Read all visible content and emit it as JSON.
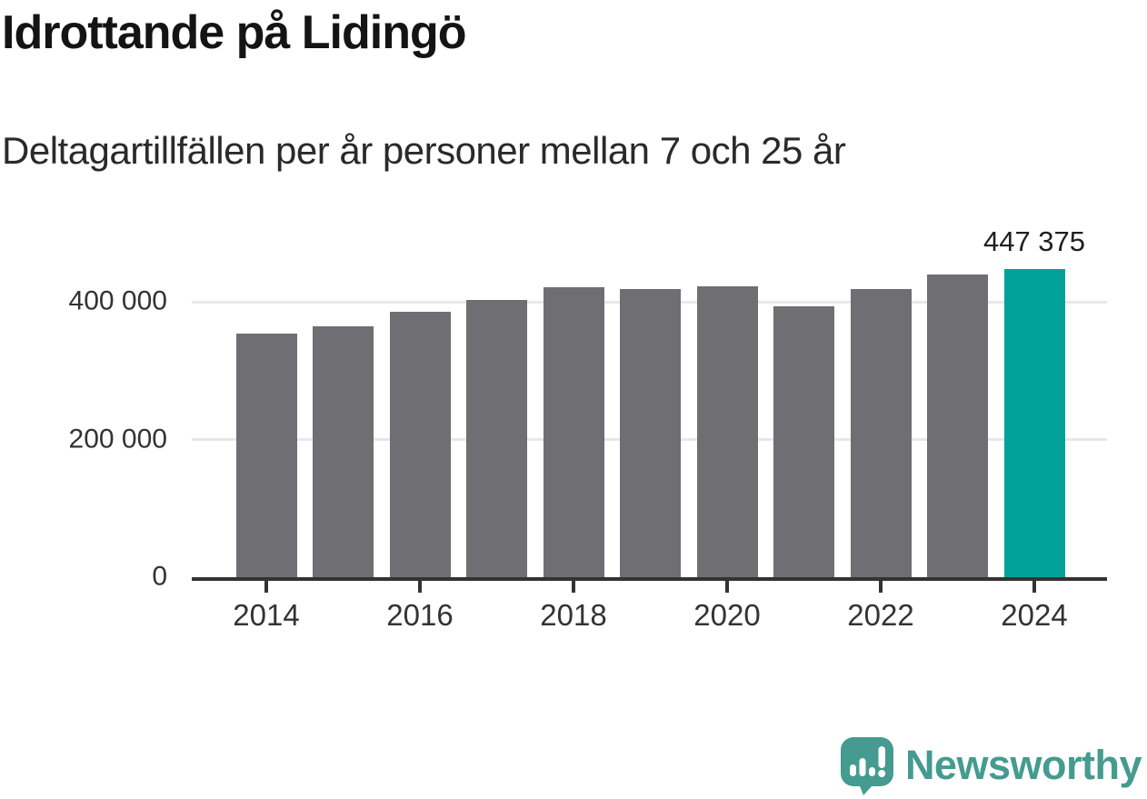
{
  "header": {
    "title": "Idrottande på Lidingö",
    "subtitle": "Deltagartillfällen per år personer mellan 7 och 25 år"
  },
  "chart_data": {
    "type": "bar",
    "title": "Idrottande på Lidingö",
    "subtitle": "Deltagartillfällen per år personer mellan 7 och 25 år",
    "categories": [
      "2014",
      "2015",
      "2016",
      "2017",
      "2018",
      "2019",
      "2020",
      "2021",
      "2022",
      "2023",
      "2024"
    ],
    "values": [
      354000,
      364000,
      386000,
      402000,
      421000,
      418000,
      423000,
      394000,
      419000,
      440000,
      447375
    ],
    "highlight_index": 10,
    "value_label": {
      "index": 10,
      "text": "447 375"
    },
    "yticks": [
      {
        "value": 0,
        "label": "0"
      },
      {
        "value": 200000,
        "label": "200 000"
      },
      {
        "value": 400000,
        "label": "400 000"
      }
    ],
    "xticks": [
      "2014",
      "2016",
      "2018",
      "2020",
      "2022",
      "2024"
    ],
    "ylim": [
      0,
      460000
    ],
    "grid": "horizontal-only",
    "legend": "none",
    "colors": {
      "bar": "#6e6e73",
      "highlight": "#00a29a",
      "gridline": "#e8e8e8",
      "axis_line": "#333333",
      "tick_text": "#333333",
      "value_text": "#1f1f1f"
    }
  },
  "footer": {
    "brand": "Newsworthy",
    "brand_color": "#459b90",
    "logo_icon": "newsworthy-speech-bubble-bar-chart-icon"
  }
}
